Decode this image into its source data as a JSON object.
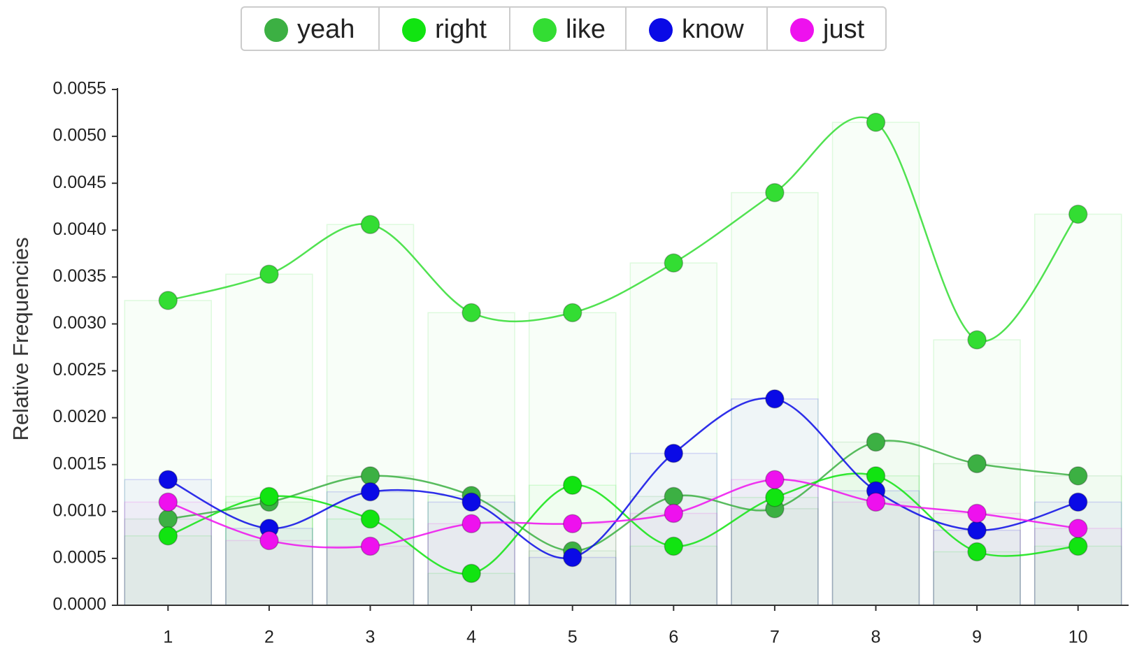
{
  "chart_data": {
    "type": "line",
    "y_label": "Relative Frequencies",
    "categories": [
      "1",
      "2",
      "3",
      "4",
      "5",
      "6",
      "7",
      "8",
      "9",
      "10"
    ],
    "series": [
      {
        "name": "yeah",
        "color": "#3cb043",
        "values": [
          0.00092,
          0.0011,
          0.00138,
          0.00117,
          0.00058,
          0.00116,
          0.00103,
          0.00174,
          0.00151,
          0.00138
        ]
      },
      {
        "name": "right",
        "color": "#11e411",
        "values": [
          0.00074,
          0.00116,
          0.00092,
          0.00034,
          0.00128,
          0.00063,
          0.00115,
          0.00138,
          0.00057,
          0.00063
        ]
      },
      {
        "name": "like",
        "color": "#33dd33",
        "values": [
          0.00325,
          0.00353,
          0.00406,
          0.00312,
          0.00312,
          0.00365,
          0.0044,
          0.00515,
          0.00283,
          0.00417
        ]
      },
      {
        "name": "know",
        "color": "#0a0ae6",
        "values": [
          0.00134,
          0.00082,
          0.00121,
          0.0011,
          0.00051,
          0.00162,
          0.0022,
          0.00122,
          0.0008,
          0.0011
        ]
      },
      {
        "name": "just",
        "color": "#ee11ee",
        "values": [
          0.0011,
          0.00069,
          0.00063,
          0.00087,
          0.00087,
          0.00098,
          0.00134,
          0.0011,
          0.00098,
          0.00082
        ]
      }
    ],
    "ylim": [
      0,
      0.0055
    ],
    "yticks": [
      {
        "value": 0,
        "label": "0.0000"
      },
      {
        "value": 0.0005,
        "label": "0.0005"
      },
      {
        "value": 0.001,
        "label": "0.0010"
      },
      {
        "value": 0.0015,
        "label": "0.0015"
      },
      {
        "value": 0.002,
        "label": "0.0020"
      },
      {
        "value": 0.0025,
        "label": "0.0025"
      },
      {
        "value": 0.003,
        "label": "0.0030"
      },
      {
        "value": 0.0035,
        "label": "0.0035"
      },
      {
        "value": 0.004,
        "label": "0.0040"
      },
      {
        "value": 0.0045,
        "label": "0.0045"
      },
      {
        "value": 0.005,
        "label": "0.0050"
      },
      {
        "value": 0.0055,
        "label": "0.0055"
      }
    ],
    "legend": "top"
  }
}
